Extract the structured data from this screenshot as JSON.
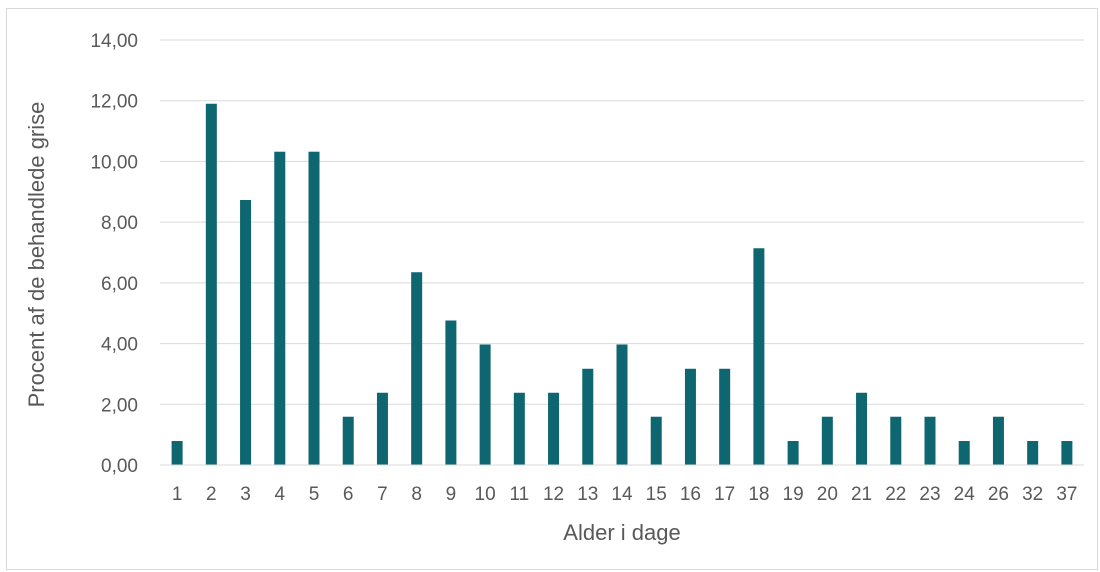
{
  "chart_data": {
    "type": "bar",
    "title": "",
    "xlabel": "Alder i dage",
    "ylabel": "Procent af de behandlede grise",
    "ylim": [
      0,
      14
    ],
    "yticks": [
      "0,00",
      "2,00",
      "4,00",
      "6,00",
      "8,00",
      "10,00",
      "12,00",
      "14,00"
    ],
    "grid": true,
    "legend": "none",
    "bar_color": "#0e6670",
    "categories": [
      "1",
      "2",
      "3",
      "4",
      "5",
      "6",
      "7",
      "8",
      "9",
      "10",
      "11",
      "12",
      "13",
      "14",
      "15",
      "16",
      "17",
      "18",
      "19",
      "20",
      "21",
      "22",
      "23",
      "24",
      "26",
      "32",
      "37"
    ],
    "values": [
      0.79,
      11.9,
      8.73,
      10.32,
      10.32,
      1.59,
      2.38,
      6.35,
      4.76,
      3.97,
      2.38,
      2.38,
      3.17,
      3.97,
      1.59,
      3.17,
      3.17,
      7.14,
      0.79,
      1.59,
      2.38,
      1.59,
      1.59,
      0.79,
      1.59,
      0.79,
      0.79
    ]
  }
}
